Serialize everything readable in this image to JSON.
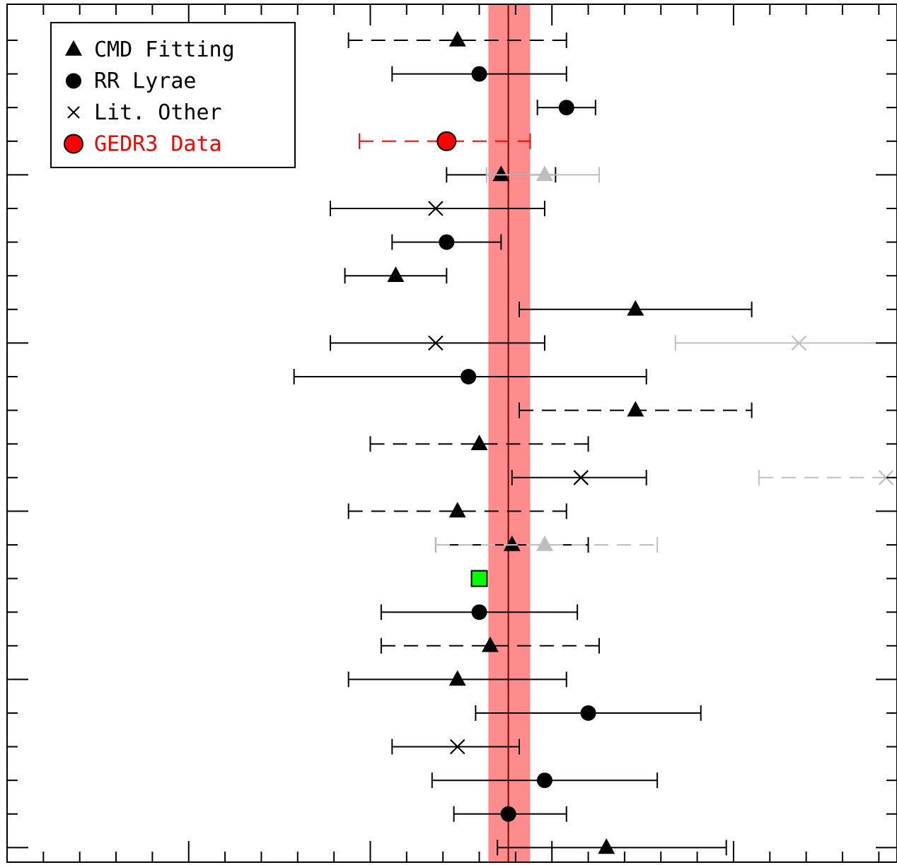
{
  "chart_data": {
    "type": "scatter",
    "title": "",
    "xlabel": "",
    "ylabel": "",
    "xlim": [
      0,
      24.5
    ],
    "grid": false,
    "legend_placement": "top-left",
    "reference": {
      "center": 13.8,
      "band": [
        13.25,
        14.4
      ],
      "line_color": "#800000",
      "band_color": "#ff8c8c"
    },
    "legend": [
      {
        "key": "cmd",
        "marker": "triangle",
        "label": "CMD Fitting",
        "color": "#000000"
      },
      {
        "key": "rr",
        "marker": "circle",
        "label": "RR Lyrae",
        "color": "#000000"
      },
      {
        "key": "lit",
        "marker": "x",
        "label": "Lit. Other",
        "color": "#000000"
      },
      {
        "key": "gedr3",
        "marker": "circle-red",
        "label": "GEDR3 Data",
        "color": "#ff0000"
      }
    ],
    "colors": {
      "primary": "#000000",
      "secondary": "#bebebe",
      "gedr3": "#ff0000",
      "square": "#00ff00"
    },
    "rows": [
      {
        "row": 1,
        "points": [
          {
            "marker": "triangle",
            "value": 12.4,
            "lo": 9.4,
            "hi": 15.4,
            "dashed": true,
            "tone": "primary"
          }
        ]
      },
      {
        "row": 2,
        "points": [
          {
            "marker": "circle",
            "value": 13.0,
            "lo": 10.6,
            "hi": 15.4,
            "dashed": false,
            "tone": "primary"
          }
        ]
      },
      {
        "row": 3,
        "points": [
          {
            "marker": "circle",
            "value": 15.4,
            "lo": 14.6,
            "hi": 16.2,
            "dashed": false,
            "tone": "primary"
          }
        ]
      },
      {
        "row": 4,
        "points": [
          {
            "marker": "circle-red",
            "value": 12.1,
            "lo": 9.7,
            "hi": 14.4,
            "dashed": true,
            "tone": "gedr3"
          }
        ]
      },
      {
        "row": 5,
        "points": [
          {
            "marker": "triangle",
            "value": 13.6,
            "lo": 12.1,
            "hi": 15.1,
            "dashed": false,
            "tone": "primary"
          },
          {
            "marker": "triangle",
            "value": 14.8,
            "lo": 13.2,
            "hi": 16.3,
            "dashed": false,
            "tone": "secondary"
          }
        ]
      },
      {
        "row": 6,
        "points": [
          {
            "marker": "x",
            "value": 11.8,
            "lo": 8.9,
            "hi": 14.8,
            "dashed": false,
            "tone": "primary"
          }
        ]
      },
      {
        "row": 7,
        "points": [
          {
            "marker": "circle",
            "value": 12.1,
            "lo": 10.6,
            "hi": 13.6,
            "dashed": false,
            "tone": "primary"
          }
        ]
      },
      {
        "row": 8,
        "points": [
          {
            "marker": "triangle",
            "value": 10.7,
            "lo": 9.3,
            "hi": 12.1,
            "dashed": false,
            "tone": "primary"
          }
        ]
      },
      {
        "row": 9,
        "points": [
          {
            "marker": "triangle",
            "value": 17.3,
            "lo": 14.1,
            "hi": 20.5,
            "dashed": false,
            "tone": "primary"
          }
        ]
      },
      {
        "row": 10,
        "points": [
          {
            "marker": "x",
            "value": 11.8,
            "lo": 8.9,
            "hi": 14.8,
            "dashed": false,
            "tone": "primary"
          },
          {
            "marker": "x",
            "value": 21.8,
            "lo": 18.4,
            "hi": 25.2,
            "dashed": false,
            "tone": "secondary"
          }
        ]
      },
      {
        "row": 11,
        "points": [
          {
            "marker": "circle",
            "value": 12.7,
            "lo": 7.9,
            "hi": 17.6,
            "dashed": false,
            "tone": "primary"
          }
        ]
      },
      {
        "row": 12,
        "points": [
          {
            "marker": "triangle",
            "value": 17.3,
            "lo": 14.1,
            "hi": 20.5,
            "dashed": true,
            "tone": "primary"
          }
        ]
      },
      {
        "row": 13,
        "points": [
          {
            "marker": "triangle",
            "value": 13.0,
            "lo": 10.0,
            "hi": 16.0,
            "dashed": true,
            "tone": "primary"
          }
        ]
      },
      {
        "row": 14,
        "points": [
          {
            "marker": "x",
            "value": 15.8,
            "lo": 13.9,
            "hi": 17.6,
            "dashed": false,
            "tone": "primary"
          },
          {
            "marker": "x",
            "value": 24.2,
            "lo": 20.7,
            "hi": 27.5,
            "dashed": true,
            "tone": "secondary"
          }
        ]
      },
      {
        "row": 15,
        "points": [
          {
            "marker": "triangle",
            "value": 12.4,
            "lo": 9.4,
            "hi": 15.4,
            "dashed": true,
            "tone": "primary"
          }
        ]
      },
      {
        "row": 16,
        "points": [
          {
            "marker": "triangle",
            "value": 13.9,
            "lo": 11.8,
            "hi": 16.0,
            "dashed": false,
            "tone": "primary"
          },
          {
            "marker": "triangle",
            "value": 14.8,
            "lo": 11.8,
            "hi": 17.9,
            "dashed": true,
            "tone": "secondary"
          }
        ]
      },
      {
        "row": 17,
        "points": [
          {
            "marker": "square",
            "value": 13.0,
            "tone": "square"
          }
        ]
      },
      {
        "row": 18,
        "points": [
          {
            "marker": "circle",
            "value": 13.0,
            "lo": 10.3,
            "hi": 15.7,
            "dashed": false,
            "tone": "primary"
          }
        ]
      },
      {
        "row": 19,
        "points": [
          {
            "marker": "triangle",
            "value": 13.3,
            "lo": 10.3,
            "hi": 16.3,
            "dashed": true,
            "tone": "primary"
          }
        ]
      },
      {
        "row": 20,
        "points": [
          {
            "marker": "triangle",
            "value": 12.4,
            "lo": 9.4,
            "hi": 15.4,
            "dashed": false,
            "tone": "primary"
          }
        ]
      },
      {
        "row": 21,
        "points": [
          {
            "marker": "circle",
            "value": 16.0,
            "lo": 12.9,
            "hi": 19.1,
            "dashed": false,
            "tone": "primary"
          }
        ]
      },
      {
        "row": 22,
        "points": [
          {
            "marker": "x",
            "value": 12.4,
            "lo": 10.6,
            "hi": 14.1,
            "dashed": false,
            "tone": "primary"
          }
        ]
      },
      {
        "row": 23,
        "points": [
          {
            "marker": "circle",
            "value": 14.8,
            "lo": 11.7,
            "hi": 17.9,
            "dashed": false,
            "tone": "primary"
          }
        ]
      },
      {
        "row": 24,
        "points": [
          {
            "marker": "circle",
            "value": 13.8,
            "lo": 12.3,
            "hi": 15.4,
            "dashed": false,
            "tone": "primary"
          }
        ]
      },
      {
        "row": 25,
        "points": [
          {
            "marker": "triangle",
            "value": 16.5,
            "lo": 13.5,
            "hi": 19.8,
            "dashed": false,
            "tone": "primary"
          }
        ]
      }
    ]
  }
}
